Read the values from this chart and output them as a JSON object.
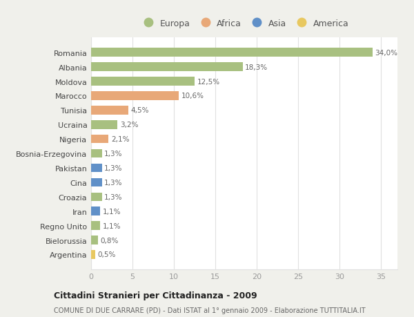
{
  "countries": [
    "Romania",
    "Albania",
    "Moldova",
    "Marocco",
    "Tunisia",
    "Ucraina",
    "Nigeria",
    "Bosnia-Erzegovina",
    "Pakistan",
    "Cina",
    "Croazia",
    "Iran",
    "Regno Unito",
    "Bielorussia",
    "Argentina"
  ],
  "values": [
    34.0,
    18.3,
    12.5,
    10.6,
    4.5,
    3.2,
    2.1,
    1.3,
    1.3,
    1.3,
    1.3,
    1.1,
    1.1,
    0.8,
    0.5
  ],
  "labels": [
    "34,0%",
    "18,3%",
    "12,5%",
    "10,6%",
    "4,5%",
    "3,2%",
    "2,1%",
    "1,3%",
    "1,3%",
    "1,3%",
    "1,3%",
    "1,1%",
    "1,1%",
    "0,8%",
    "0,5%"
  ],
  "continents": [
    "Europa",
    "Europa",
    "Europa",
    "Africa",
    "Africa",
    "Europa",
    "Africa",
    "Europa",
    "Asia",
    "Asia",
    "Europa",
    "Asia",
    "Europa",
    "Europa",
    "America"
  ],
  "continent_colors": {
    "Europa": "#a8c080",
    "Africa": "#e8a878",
    "Asia": "#6090c8",
    "America": "#e8c860"
  },
  "legend_order": [
    "Europa",
    "Africa",
    "Asia",
    "America"
  ],
  "title": "Cittadini Stranieri per Cittadinanza - 2009",
  "subtitle": "COMUNE DI DUE CARRARE (PD) - Dati ISTAT al 1° gennaio 2009 - Elaborazione TUTTITALIA.IT",
  "xlim": [
    0,
    37
  ],
  "xticks": [
    0,
    5,
    10,
    15,
    20,
    25,
    30,
    35
  ],
  "background_color": "#f0f0eb",
  "plot_bg_color": "#ffffff",
  "grid_color": "#e0e0e0",
  "label_color": "#666666",
  "ytick_color": "#444444",
  "xtick_color": "#999999"
}
